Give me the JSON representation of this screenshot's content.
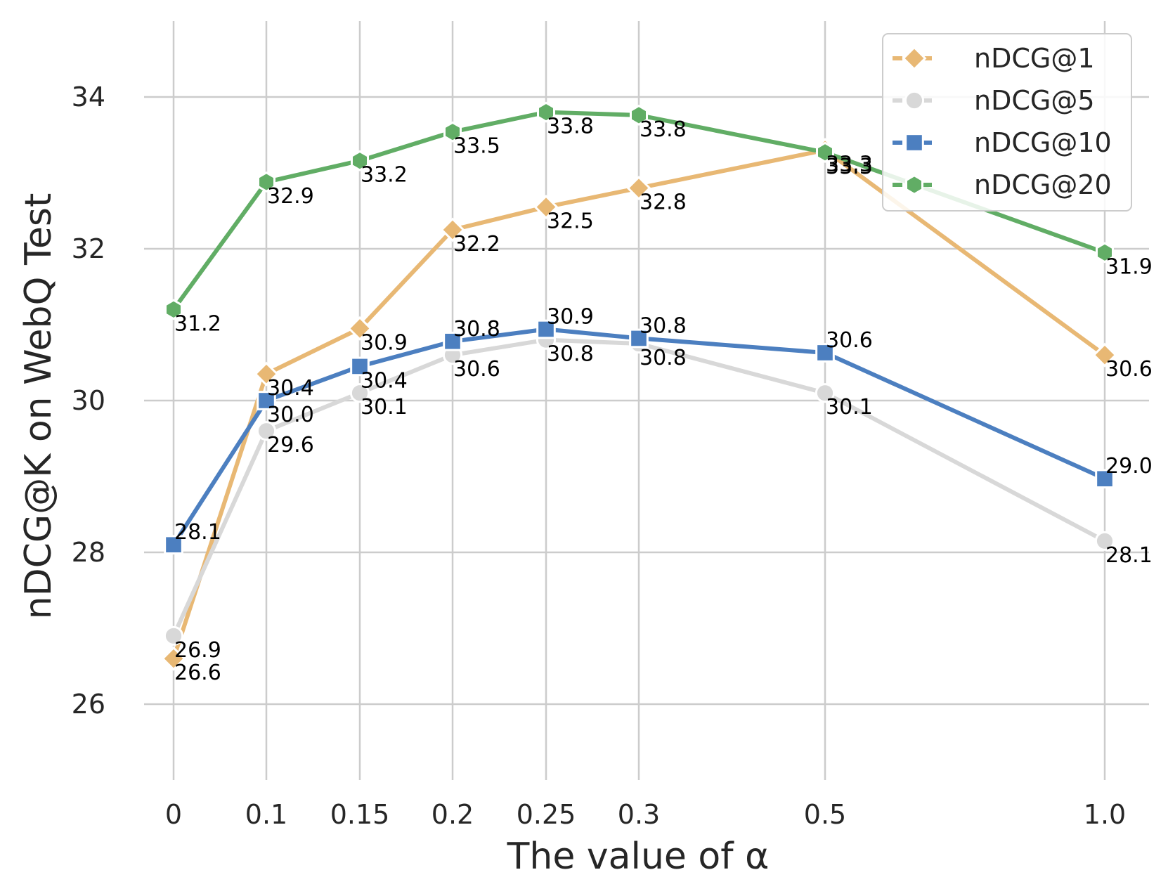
{
  "chart_data": {
    "type": "line",
    "categories": [
      "0",
      "0.1",
      "0.15",
      "0.2",
      "0.25",
      "0.3",
      "0.5",
      "1.0"
    ],
    "xlabel": "The value of α",
    "ylabel": "nDCG@K on WebQ Test",
    "ylim": [
      25,
      35
    ],
    "yticks": [
      26,
      28,
      30,
      32,
      34
    ],
    "grid": true,
    "legend_position": "top-right",
    "series": [
      {
        "name": "nDCG@1",
        "marker": "diamond",
        "color": "#e8b874",
        "values": [
          26.6,
          30.35,
          30.95,
          32.25,
          32.55,
          32.8,
          33.3,
          30.6
        ],
        "labels": [
          "26.6",
          "30.4",
          "30.9",
          "32.2",
          "32.5",
          "32.8",
          "33.3",
          "30.6"
        ]
      },
      {
        "name": "nDCG@5",
        "marker": "circle",
        "color": "#d8d8d8",
        "values": [
          26.9,
          29.6,
          30.1,
          30.6,
          30.8,
          30.75,
          30.1,
          28.15
        ],
        "labels": [
          "26.9",
          "29.6",
          "30.1",
          "30.6",
          "30.8",
          "30.8",
          "30.1",
          "28.1"
        ]
      },
      {
        "name": "nDCG@10",
        "marker": "square",
        "color": "#4c7fc0",
        "values": [
          28.1,
          30.0,
          30.45,
          30.78,
          30.94,
          30.82,
          30.63,
          28.97
        ],
        "labels": [
          "28.1",
          "30.0",
          "30.4",
          "30.8",
          "30.9",
          "30.8",
          "30.6",
          "29.0"
        ]
      },
      {
        "name": "nDCG@20",
        "marker": "hexagon",
        "color": "#61ad65",
        "values": [
          31.2,
          32.88,
          33.16,
          33.54,
          33.8,
          33.76,
          33.27,
          31.95
        ],
        "labels": [
          "31.2",
          "32.9",
          "33.2",
          "33.5",
          "33.8",
          "33.8",
          "33.3",
          "31.9"
        ]
      }
    ]
  }
}
